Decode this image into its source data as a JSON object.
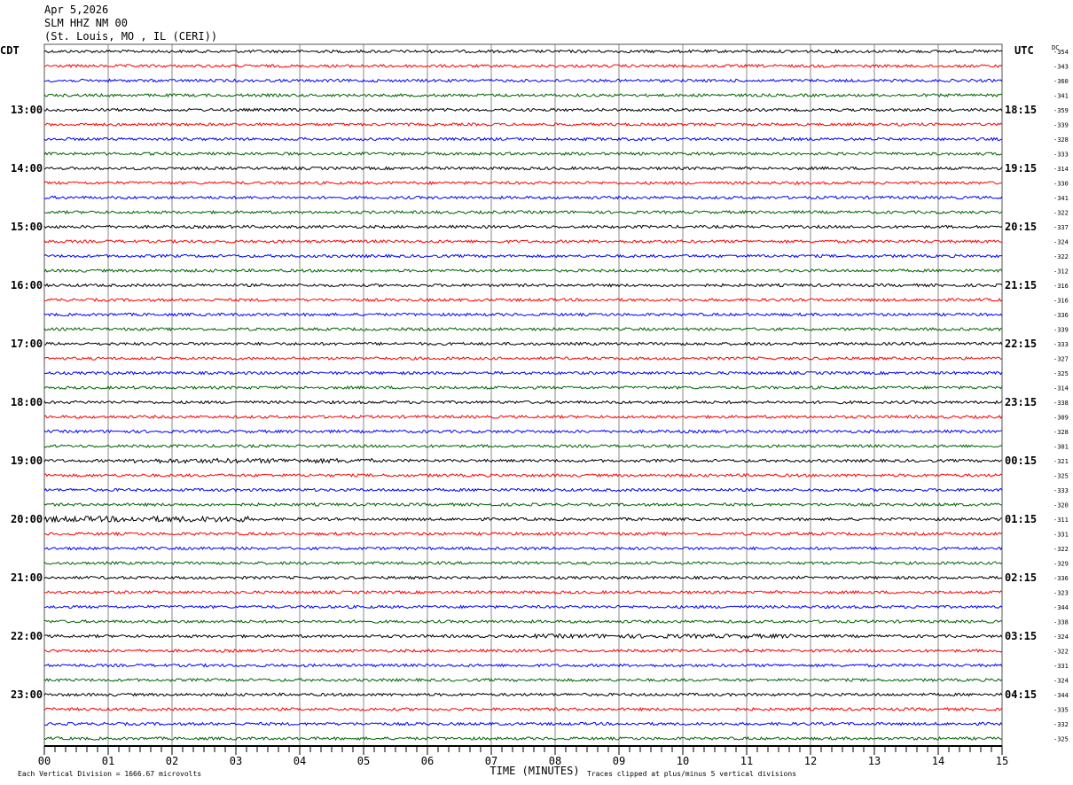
{
  "header": {
    "date": "Apr 5,2026",
    "station": "SLM HHZ NM 00",
    "location": "(St. Louis, MO , IL (CERI))"
  },
  "chart_data": {
    "type": "line",
    "title": "",
    "xlabel": "TIME (MINUTES)",
    "x_ticks": [
      "00",
      "01",
      "02",
      "03",
      "04",
      "05",
      "06",
      "07",
      "08",
      "09",
      "10",
      "11",
      "12",
      "13",
      "14",
      "15"
    ],
    "xlim": [
      0,
      15
    ],
    "left_axis_label": "CDT",
    "right_axis_label": "UTC",
    "dc_label": "DC",
    "left_hour_labels": [
      "13:00",
      "14:00",
      "15:00",
      "16:00",
      "17:00",
      "18:00",
      "19:00",
      "20:00",
      "21:00",
      "22:00",
      "23:00"
    ],
    "right_hour_labels": [
      "18:15",
      "19:15",
      "20:15",
      "21:15",
      "22:15",
      "23:15",
      "00:15",
      "01:15",
      "02:15",
      "03:15",
      "04:15"
    ],
    "trace_colors": [
      "#000000",
      "#ff0000",
      "#0000ff",
      "#006400"
    ],
    "dc_offsets": [
      -354,
      -343,
      -360,
      -341,
      -359,
      -339,
      -328,
      -333,
      -314,
      -330,
      -341,
      -322,
      -337,
      -324,
      -322,
      -312,
      -316,
      -316,
      -336,
      -339,
      -333,
      -327,
      -325,
      -314,
      -338,
      -309,
      -328,
      -301,
      -321,
      -325,
      -333,
      -320,
      -311,
      -331,
      -322,
      -329,
      -336,
      -323,
      -344,
      -338,
      -324,
      -322,
      -331,
      -324,
      -344,
      -335,
      -332,
      -325
    ],
    "grid": true
  },
  "footer": {
    "scale_note": "Each Vertical Division = 1666.67 microvolts",
    "clip_note": "Traces clipped at plus/minus 5 vertical divisions"
  }
}
